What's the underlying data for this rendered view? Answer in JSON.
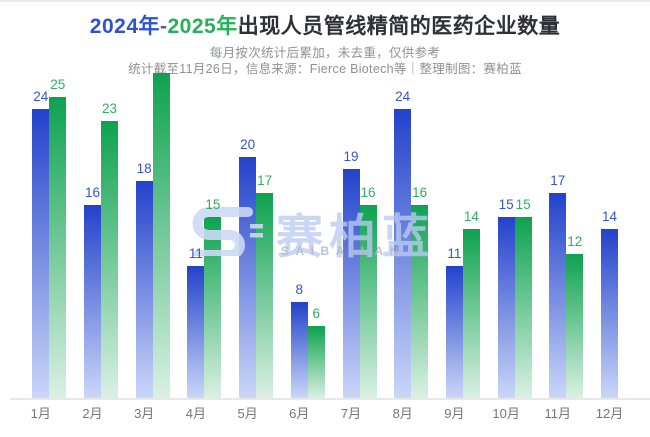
{
  "header": {
    "title_year_left": "2024年",
    "title_dash": "-",
    "title_year_right": "2025年",
    "title_rest": "出现人员管线精简的医药企业数量",
    "subtitle_line1": "每月按次统计后累加，未去重，仅供参考",
    "subtitle_line2": "统计截至11月26日，信息来源：Fierce Biotech等｜整理制图：赛柏蓝"
  },
  "watermark": {
    "logo": "saibailan-s-logo",
    "text": "赛柏蓝",
    "subtext": "SAIBAILAN"
  },
  "colors": {
    "title_blue": "#2f52d3",
    "title_green": "#22b258",
    "title_dark": "#2e3038",
    "title_dash": "#56607a",
    "blue_bar_top": "#2342cb",
    "blue_bar_bottom": "#cad6f8",
    "green_bar_top": "#0da24f",
    "green_bar_bottom": "#daf0e3",
    "blue_label": "#3355d0",
    "green_label": "#2fb061",
    "subtitle_gray": "#8f9097",
    "month_label_gray": "#74747d",
    "axis_line": "#e8e8eb",
    "watermark_blue": "#ccd8f6"
  },
  "chart_data": {
    "type": "bar",
    "title": "2024年-2025年出现人员管线精简的医药企业数量",
    "categories": [
      "1月",
      "2月",
      "3月",
      "4月",
      "5月",
      "6月",
      "7月",
      "8月",
      "9月",
      "10月",
      "11月",
      "12月"
    ],
    "series": [
      {
        "name": "2024",
        "color_key": "blue",
        "values": [
          24,
          16,
          18,
          11,
          20,
          8,
          19,
          24,
          11,
          15,
          17,
          14
        ],
        "labels": [
          "24",
          "16",
          "18",
          "11",
          "20",
          "8",
          "19",
          "24",
          "11",
          "15",
          "17",
          "14"
        ]
      },
      {
        "name": "2025",
        "color_key": "green",
        "values": [
          25,
          23,
          27,
          15,
          17,
          6,
          16,
          16,
          14,
          15,
          12,
          null
        ],
        "labels": [
          "25",
          "23",
          "",
          "15",
          "17",
          "6",
          "16",
          "16",
          "14",
          "15",
          "12",
          ""
        ],
        "note": "3月 bar label is hidden behind subtitle text in image (value ~27 read from bar height); no 12月 bar"
      }
    ],
    "ylim": [
      0,
      28
    ],
    "grid": false,
    "legend": "none (series identified by title colors)"
  }
}
